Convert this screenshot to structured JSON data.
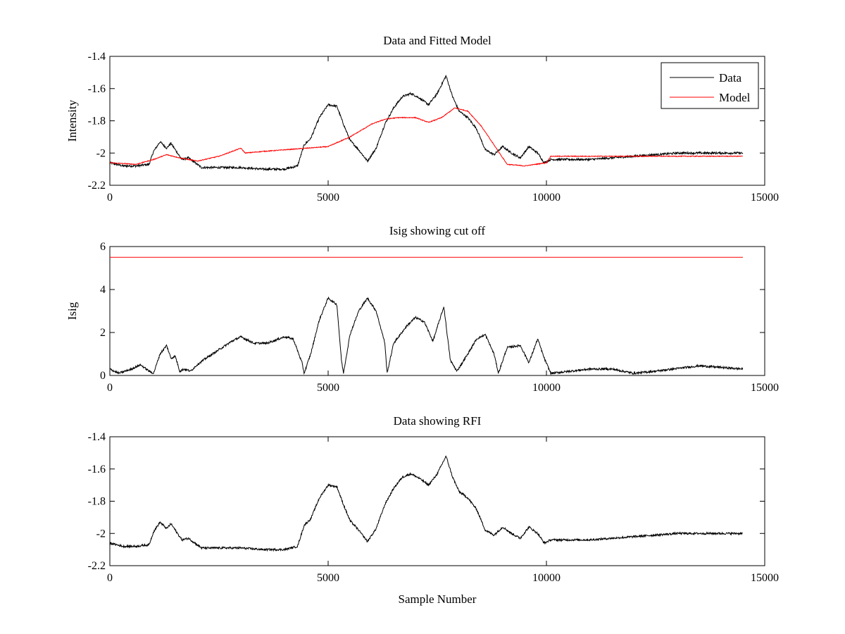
{
  "colors": {
    "data": "#000000",
    "model": "#ff0000",
    "background": "#ffffff"
  },
  "chart_data": [
    {
      "type": "line",
      "title": "Data and Fitted Model",
      "xlabel": "",
      "ylabel": "Intensity",
      "xlim": [
        0,
        15000
      ],
      "ylim": [
        -2.2,
        -1.4
      ],
      "xticks": [
        "0",
        "5000",
        "10000",
        "15000"
      ],
      "yticks": [
        "-2.2",
        "-2",
        "-1.8",
        "-1.6",
        "-1.4"
      ],
      "legend": {
        "placement": "top-right",
        "entries": [
          "Data",
          "Model"
        ]
      },
      "grid": false,
      "series": [
        {
          "name": "Data",
          "color": "#000000",
          "x": [
            0,
            300,
            600,
            900,
            1000,
            1150,
            1300,
            1400,
            1500,
            1650,
            1800,
            1950,
            2100,
            3000,
            3500,
            4000,
            4300,
            4450,
            4600,
            4800,
            5000,
            5200,
            5350,
            5500,
            5700,
            5900,
            6100,
            6300,
            6500,
            6700,
            6900,
            7100,
            7300,
            7500,
            7700,
            7850,
            8000,
            8200,
            8400,
            8600,
            8800,
            9000,
            9200,
            9400,
            9600,
            9800,
            9950,
            10100,
            11000,
            12000,
            13000,
            13500,
            14500
          ],
          "y": [
            -2.06,
            -2.08,
            -2.08,
            -2.07,
            -1.99,
            -1.93,
            -1.97,
            -1.94,
            -1.98,
            -2.04,
            -2.03,
            -2.06,
            -2.09,
            -2.09,
            -2.1,
            -2.1,
            -2.08,
            -1.95,
            -1.91,
            -1.78,
            -1.7,
            -1.71,
            -1.82,
            -1.92,
            -1.98,
            -2.05,
            -1.97,
            -1.82,
            -1.72,
            -1.65,
            -1.63,
            -1.66,
            -1.7,
            -1.63,
            -1.52,
            -1.65,
            -1.74,
            -1.78,
            -1.85,
            -1.98,
            -2.01,
            -1.96,
            -2.0,
            -2.03,
            -1.96,
            -2.0,
            -2.06,
            -2.04,
            -2.04,
            -2.02,
            -2.0,
            -2.0,
            -2.0
          ]
        },
        {
          "name": "Model",
          "color": "#ff0000",
          "x": [
            0,
            600,
            1000,
            1300,
            1600,
            2000,
            2500,
            3000,
            3100,
            3500,
            4000,
            4500,
            5000,
            5500,
            6000,
            6300,
            6600,
            7000,
            7300,
            7600,
            7900,
            8200,
            8500,
            8800,
            9100,
            9500,
            10000,
            10100,
            12000,
            14500
          ],
          "y": [
            -2.06,
            -2.07,
            -2.04,
            -2.01,
            -2.03,
            -2.05,
            -2.02,
            -1.97,
            -2.0,
            -1.99,
            -1.98,
            -1.97,
            -1.96,
            -1.9,
            -1.82,
            -1.79,
            -1.78,
            -1.78,
            -1.81,
            -1.78,
            -1.72,
            -1.74,
            -1.83,
            -1.95,
            -2.07,
            -2.08,
            -2.06,
            -2.02,
            -2.02,
            -2.02
          ]
        }
      ]
    },
    {
      "type": "line",
      "title": "Isig showing cut off",
      "xlabel": "",
      "ylabel": "Isig",
      "xlim": [
        0,
        15000
      ],
      "ylim": [
        0,
        6
      ],
      "xticks": [
        "0",
        "5000",
        "10000",
        "15000"
      ],
      "yticks": [
        "0",
        "2",
        "4",
        "6"
      ],
      "grid": false,
      "series": [
        {
          "color": "#000000",
          "x": [
            0,
            200,
            500,
            700,
            900,
            1000,
            1150,
            1300,
            1400,
            1500,
            1600,
            1700,
            1850,
            2000,
            2200,
            2500,
            2800,
            3000,
            3300,
            3600,
            4000,
            4200,
            4400,
            4450,
            4600,
            4800,
            5000,
            5200,
            5300,
            5350,
            5500,
            5700,
            5900,
            6100,
            6300,
            6350,
            6500,
            6800,
            7000,
            7200,
            7400,
            7650,
            7800,
            7950,
            8200,
            8400,
            8600,
            8800,
            8900,
            9100,
            9400,
            9600,
            9800,
            9950,
            10100,
            11000,
            11500,
            12000,
            12500,
            13500,
            14500
          ],
          "y": [
            0.3,
            0.1,
            0.3,
            0.5,
            0.2,
            0.1,
            1.0,
            1.4,
            0.8,
            0.9,
            0.2,
            0.3,
            0.2,
            0.5,
            0.8,
            1.2,
            1.6,
            1.8,
            1.5,
            1.5,
            1.8,
            1.7,
            0.6,
            0.1,
            1.0,
            2.6,
            3.6,
            3.3,
            0.8,
            0.1,
            1.9,
            3.0,
            3.6,
            3.0,
            1.5,
            0.1,
            1.5,
            2.3,
            2.7,
            2.5,
            1.6,
            3.2,
            0.7,
            0.2,
            1.0,
            1.7,
            1.9,
            1.0,
            0.1,
            1.3,
            1.4,
            0.6,
            1.7,
            0.8,
            0.1,
            0.3,
            0.3,
            0.1,
            0.2,
            0.45,
            0.3
          ]
        },
        {
          "color": "#ff0000",
          "x": [
            0,
            14500
          ],
          "y": [
            5.5,
            5.5
          ]
        }
      ]
    },
    {
      "type": "line",
      "title": "Data showing RFI",
      "xlabel": "Sample Number",
      "ylabel": "",
      "xlim": [
        0,
        15000
      ],
      "ylim": [
        -2.2,
        -1.4
      ],
      "xticks": [
        "0",
        "5000",
        "10000",
        "15000"
      ],
      "yticks": [
        "-2.2",
        "-2",
        "-1.8",
        "-1.6",
        "-1.4"
      ],
      "grid": false,
      "series": [
        {
          "color": "#000000",
          "x": [
            0,
            300,
            600,
            900,
            1000,
            1150,
            1300,
            1400,
            1500,
            1650,
            1800,
            1950,
            2100,
            3000,
            3500,
            4000,
            4300,
            4450,
            4600,
            4800,
            5000,
            5200,
            5350,
            5500,
            5700,
            5900,
            6100,
            6300,
            6500,
            6700,
            6900,
            7100,
            7300,
            7500,
            7700,
            7850,
            8000,
            8200,
            8400,
            8600,
            8800,
            9000,
            9200,
            9400,
            9600,
            9800,
            9950,
            10100,
            11000,
            12000,
            13000,
            13500,
            14500
          ],
          "y": [
            -2.06,
            -2.08,
            -2.08,
            -2.07,
            -1.99,
            -1.93,
            -1.97,
            -1.94,
            -1.98,
            -2.04,
            -2.03,
            -2.06,
            -2.09,
            -2.09,
            -2.1,
            -2.1,
            -2.08,
            -1.95,
            -1.91,
            -1.78,
            -1.7,
            -1.71,
            -1.82,
            -1.92,
            -1.98,
            -2.05,
            -1.97,
            -1.82,
            -1.72,
            -1.65,
            -1.63,
            -1.66,
            -1.7,
            -1.63,
            -1.52,
            -1.65,
            -1.74,
            -1.78,
            -1.85,
            -1.98,
            -2.01,
            -1.96,
            -2.0,
            -2.03,
            -1.96,
            -2.0,
            -2.06,
            -2.04,
            -2.04,
            -2.02,
            -2.0,
            -2.0,
            -2.0
          ]
        }
      ]
    }
  ]
}
